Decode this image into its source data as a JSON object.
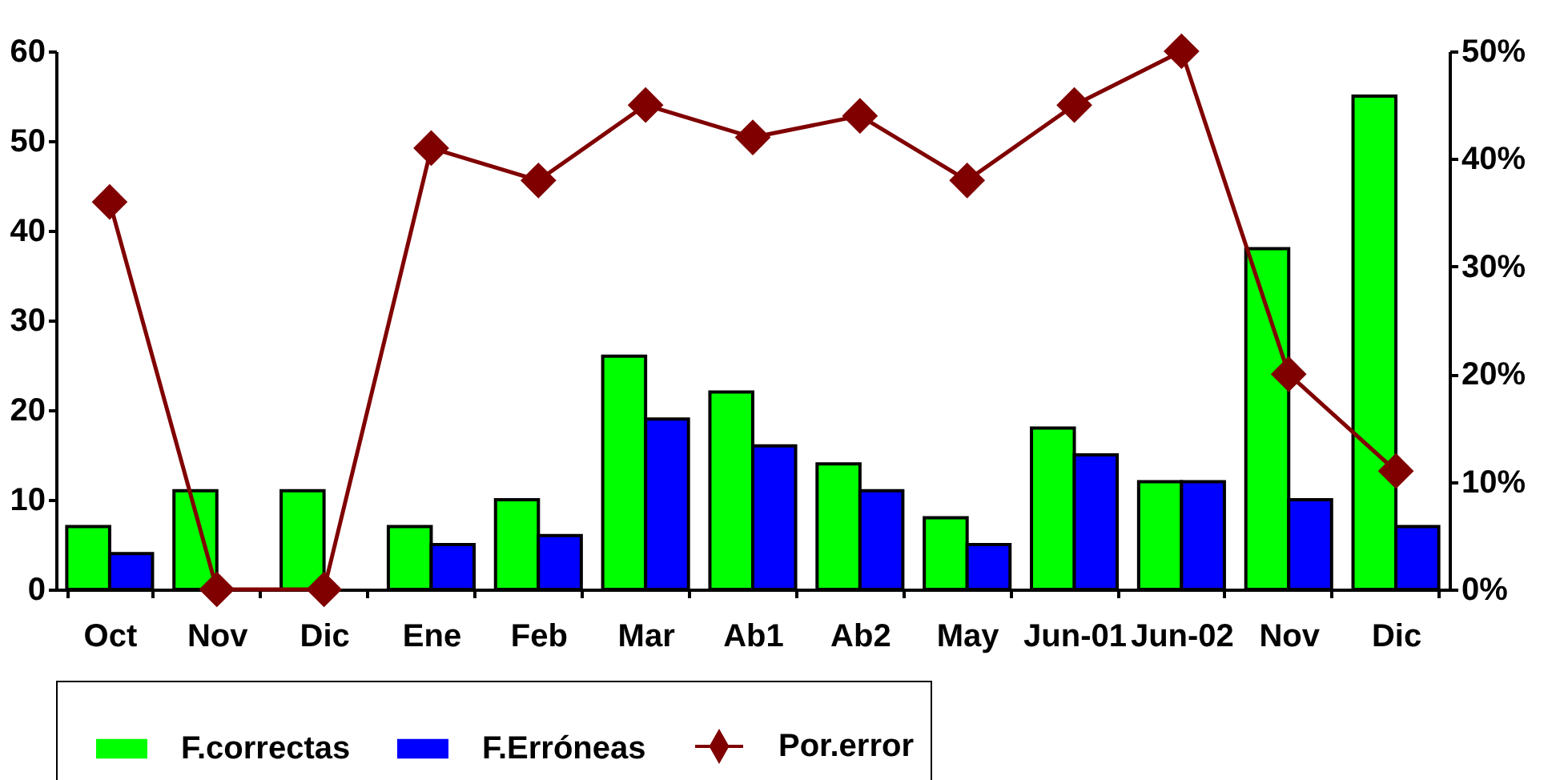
{
  "chart_data": {
    "type": "bar",
    "categories": [
      "Oct",
      "Nov",
      "Dic",
      "Ene",
      "Feb",
      "Mar",
      "Ab1",
      "Ab2",
      "May",
      "Jun-01",
      "Jun-02",
      "Nov",
      "Dic"
    ],
    "series": [
      {
        "name": "F.correctas",
        "color": "#00ff00",
        "values": [
          7,
          11,
          11,
          7,
          10,
          26,
          22,
          14,
          8,
          18,
          12,
          38,
          55
        ]
      },
      {
        "name": "F.Erróneas",
        "color": "#0000ff",
        "values": [
          4,
          null,
          null,
          5,
          6,
          19,
          16,
          11,
          5,
          15,
          12,
          10,
          7
        ]
      },
      {
        "name": "Por.error",
        "type": "line",
        "axis": "y2",
        "color": "#800000",
        "marker": "diamond",
        "values": [
          36,
          0,
          0,
          41,
          38,
          45,
          42,
          44,
          38,
          45,
          50,
          20,
          11
        ]
      }
    ],
    "ylim": [
      0,
      60
    ],
    "yticks": [
      0,
      10,
      20,
      30,
      40,
      50,
      60
    ],
    "y2lim": [
      0,
      50
    ],
    "y2ticks": [
      {
        "value": 0,
        "label": "0%"
      },
      {
        "value": 10,
        "label": "10%"
      },
      {
        "value": 20,
        "label": "20%"
      },
      {
        "value": 30,
        "label": "30%"
      },
      {
        "value": 40,
        "label": "40%"
      },
      {
        "value": 50,
        "label": "50%"
      }
    ],
    "grid": false,
    "legend": "bottom"
  }
}
